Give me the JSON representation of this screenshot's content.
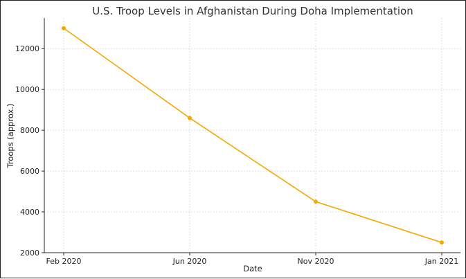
{
  "chart_data": {
    "type": "line",
    "title": "U.S. Troop Levels in Afghanistan During Doha Implementation",
    "xlabel": "Date",
    "ylabel": "Troops (approx.)",
    "categories": [
      "Feb 2020",
      "Jun 2020",
      "Nov 2020",
      "Jan 2021"
    ],
    "series": [
      {
        "values": [
          13000,
          8600,
          4500,
          2500
        ]
      }
    ],
    "ylim": [
      2000,
      13500
    ],
    "yticks": [
      2000,
      4000,
      6000,
      8000,
      10000,
      12000
    ],
    "grid": true,
    "line_color": "#f5a800",
    "marker_color": "#f5a800"
  }
}
